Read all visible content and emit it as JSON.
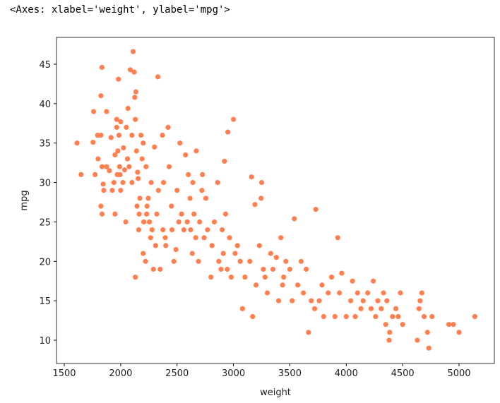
{
  "output_text": "<Axes: xlabel='weight', ylabel='mpg'>",
  "chart_data": {
    "type": "scatter",
    "xlabel": "weight",
    "ylabel": "mpg",
    "color": "#ff7f50",
    "xlim": [
      1431,
      5313
    ],
    "ylim": [
      7.05,
      48.4
    ],
    "xticks": [
      1500,
      2000,
      2500,
      3000,
      3500,
      4000,
      4500,
      5000
    ],
    "yticks": [
      10,
      15,
      20,
      25,
      30,
      35,
      40,
      45
    ],
    "x": [
      1613,
      1649,
      1760,
      1755,
      1773,
      1795,
      1800,
      1825,
      1834,
      1825,
      1835,
      1845,
      1825,
      1835,
      1850,
      1875,
      1875,
      1900,
      1915,
      1925,
      1940,
      1950,
      1950,
      1965,
      1965,
      1970,
      1975,
      1980,
      1985,
      1990,
      1995,
      2000,
      2000,
      2020,
      2025,
      2035,
      2045,
      2050,
      2060,
      2065,
      2075,
      2085,
      2100,
      2100,
      2110,
      2120,
      2125,
      2130,
      2135,
      2140,
      2145,
      2150,
      2155,
      2130,
      2160,
      2164,
      2170,
      2180,
      2190,
      2200,
      2200,
      2205,
      2220,
      2225,
      2230,
      2234,
      2245,
      2255,
      2265,
      2270,
      2278,
      2290,
      2300,
      2310,
      2320,
      2330,
      2335,
      2350,
      2370,
      2375,
      2380,
      2395,
      2400,
      2420,
      2430,
      2450,
      2455,
      2472,
      2490,
      2500,
      2515,
      2525,
      2540,
      2560,
      2575,
      2590,
      2600,
      2615,
      2620,
      2635,
      2640,
      2650,
      2665,
      2670,
      2690,
      2700,
      2720,
      2725,
      2740,
      2755,
      2770,
      2800,
      2810,
      2830,
      2860,
      2870,
      2890,
      2900,
      2910,
      2920,
      2930,
      2945,
      2950,
      2965,
      2980,
      3000,
      3015,
      3035,
      3060,
      3080,
      3102,
      3145,
      3160,
      3170,
      3190,
      3200,
      3230,
      3245,
      3250,
      3265,
      3280,
      3300,
      3330,
      3350,
      3380,
      3400,
      3420,
      3435,
      3445,
      3465,
      3500,
      3520,
      3540,
      3570,
      3600,
      3620,
      3645,
      3665,
      3690,
      3720,
      3730,
      3760,
      3785,
      3800,
      3840,
      3870,
      3900,
      3925,
      3940,
      3960,
      4000,
      4040,
      4055,
      4080,
      4100,
      4130,
      4150,
      4190,
      4220,
      4240,
      4260,
      4280,
      4310,
      4330,
      4350,
      4360,
      4380,
      4385,
      4410,
      4440,
      4460,
      4480,
      4500,
      4630,
      4645,
      4655,
      4670,
      4690,
      4720,
      4732,
      4760,
      4910,
      4950,
      5000,
      5140
    ],
    "y": [
      35,
      31,
      39,
      35.1,
      31,
      36,
      33,
      41,
      44.6,
      36,
      32,
      29.8,
      27,
      26,
      29,
      39,
      32,
      31.5,
      35.7,
      29,
      30,
      33.5,
      26,
      38,
      37,
      31,
      34,
      43.1,
      36,
      32,
      31,
      29,
      37.7,
      30,
      34.4,
      31.6,
      25,
      37,
      33,
      39.4,
      32,
      44.3,
      36,
      30,
      46.6,
      44,
      40.8,
      38,
      41.5,
      34,
      27,
      31.3,
      30.5,
      18,
      24,
      26,
      28,
      36,
      33,
      35,
      21,
      25,
      20,
      32,
      26,
      27,
      28,
      25,
      23,
      30,
      24,
      19,
      34.5,
      22,
      26,
      43.4,
      29,
      19,
      36,
      24,
      30,
      23,
      22,
      37,
      32,
      27,
      24,
      20,
      21.5,
      29,
      25,
      35,
      26,
      24,
      33.5,
      25,
      31,
      28,
      24,
      21,
      30,
      26,
      23,
      34,
      20,
      25,
      29,
      31,
      23,
      28,
      24,
      18,
      22,
      25,
      30,
      20,
      19,
      24,
      21,
      32.7,
      26,
      19,
      36.4,
      23,
      18,
      38,
      21,
      22,
      20,
      14,
      18,
      20,
      30.7,
      13,
      27.2,
      17,
      22,
      28,
      30,
      19,
      18,
      16,
      21,
      19,
      20.5,
      15,
      23,
      17,
      18,
      20,
      19,
      15,
      25.4,
      17,
      20,
      16,
      19,
      11,
      15,
      14,
      26.6,
      15,
      17,
      13,
      16,
      18,
      13,
      23,
      16,
      18.5,
      13,
      15,
      17.5,
      13,
      16,
      14,
      15,
      16,
      14,
      17.5,
      13,
      15,
      14,
      16,
      12,
      15,
      10,
      11,
      13,
      14,
      13,
      16,
      12,
      10,
      14,
      15,
      16,
      13,
      11,
      9,
      13,
      12,
      12,
      11,
      13
    ]
  }
}
